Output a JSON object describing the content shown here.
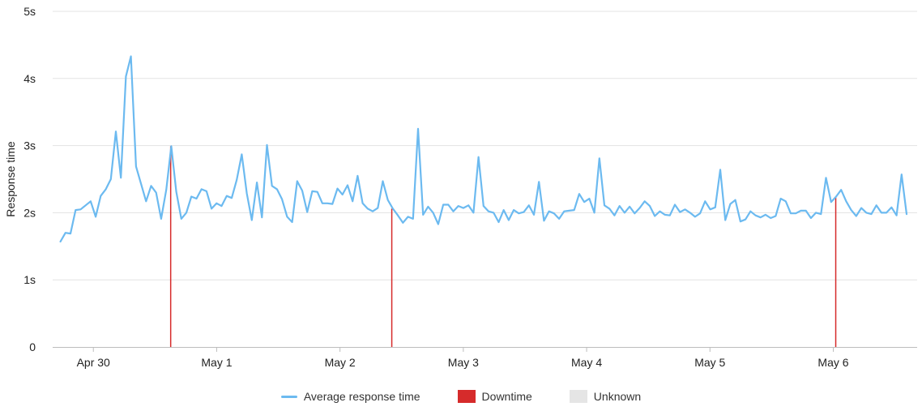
{
  "chart_data": {
    "type": "line",
    "title": "",
    "ylabel": "Response time",
    "xlabel": "",
    "ylim": [
      0,
      5
    ],
    "xlim": [
      -0.33,
      6.68
    ],
    "y_ticks": [
      {
        "value": 0,
        "label": "0"
      },
      {
        "value": 1,
        "label": "1s"
      },
      {
        "value": 2,
        "label": "2s"
      },
      {
        "value": 3,
        "label": "3s"
      },
      {
        "value": 4,
        "label": "4s"
      },
      {
        "value": 5,
        "label": "5s"
      }
    ],
    "x_ticks": [
      {
        "value": 0,
        "label": "Apr 30"
      },
      {
        "value": 1,
        "label": "May 1"
      },
      {
        "value": 2,
        "label": "May 2"
      },
      {
        "value": 3,
        "label": "May 3"
      },
      {
        "value": 4,
        "label": "May 4"
      },
      {
        "value": 5,
        "label": "May 5"
      },
      {
        "value": 6,
        "label": "May 6"
      }
    ],
    "x_units": "days since Apr 30",
    "grid": "horizontal",
    "legend_position": "bottom-center",
    "series": [
      {
        "name": "Average response time",
        "color": "#6cbaf0",
        "y": [
          1.57,
          1.7,
          1.69,
          2.04,
          2.05,
          2.11,
          2.17,
          1.94,
          2.25,
          2.35,
          2.5,
          3.21,
          2.52,
          4.03,
          4.33,
          2.69,
          2.43,
          2.17,
          2.4,
          2.3,
          1.91,
          2.34,
          2.99,
          2.31,
          1.91,
          2.0,
          2.24,
          2.21,
          2.35,
          2.32,
          2.06,
          2.14,
          2.1,
          2.25,
          2.22,
          2.49,
          2.87,
          2.29,
          1.89,
          2.45,
          1.93,
          3.01,
          2.4,
          2.35,
          2.2,
          1.94,
          1.86,
          2.47,
          2.33,
          2.01,
          2.32,
          2.31,
          2.14,
          2.14,
          2.13,
          2.36,
          2.27,
          2.41,
          2.17,
          2.55,
          2.14,
          2.06,
          2.02,
          2.07,
          2.47,
          2.19,
          2.06,
          1.96,
          1.85,
          1.94,
          1.91,
          3.25,
          1.97,
          2.09,
          2.0,
          1.83,
          2.12,
          2.12,
          2.02,
          2.1,
          2.07,
          2.11,
          2.0,
          2.83,
          2.1,
          2.02,
          2.0,
          1.86,
          2.04,
          1.89,
          2.04,
          1.99,
          2.01,
          2.11,
          1.97,
          2.46,
          1.88,
          2.02,
          1.99,
          1.91,
          2.02,
          2.03,
          2.04,
          2.28,
          2.16,
          2.21,
          2.0,
          2.81,
          2.11,
          2.06,
          1.96,
          2.1,
          2.0,
          2.09,
          1.99,
          2.07,
          2.17,
          2.1,
          1.95,
          2.02,
          1.97,
          1.96,
          2.12,
          2.01,
          2.05,
          2.0,
          1.94,
          1.99,
          2.17,
          2.05,
          2.08,
          2.64,
          1.89,
          2.13,
          2.19,
          1.87,
          1.9,
          2.02,
          1.96,
          1.93,
          1.97,
          1.92,
          1.95,
          2.21,
          2.17,
          1.99,
          1.99,
          2.03,
          2.03,
          1.92,
          2.0,
          1.98,
          2.52,
          2.16,
          2.24,
          2.34,
          2.17,
          2.04,
          1.95,
          2.07,
          2.0,
          1.98,
          2.11,
          2.0,
          2.0,
          2.08,
          1.96,
          2.57,
          1.98
        ]
      }
    ],
    "downtime_events": [
      0.627,
      2.42,
      6.02
    ],
    "legend": [
      {
        "label": "Average response time",
        "kind": "line",
        "color": "#6cbaf0"
      },
      {
        "label": "Downtime",
        "kind": "box",
        "color": "#d62b2b"
      },
      {
        "label": "Unknown",
        "kind": "box",
        "color": "#e5e5e5"
      }
    ],
    "colors": {
      "gridline": "#e3e3e3",
      "axis": "#bdbdbd",
      "downtime": "#d62b2b"
    }
  }
}
